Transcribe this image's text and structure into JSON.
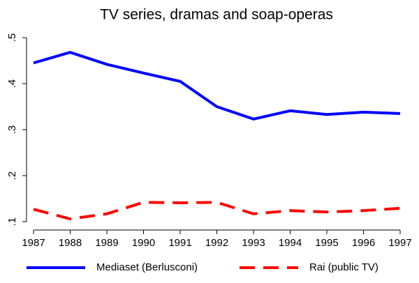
{
  "chart_data": {
    "type": "line",
    "title": "TV series, dramas and soap-operas",
    "x": [
      1987,
      1988,
      1989,
      1990,
      1991,
      1992,
      1993,
      1994,
      1995,
      1996,
      1997
    ],
    "series": [
      {
        "name": "Mediaset (Berlusconi)",
        "color": "#0000ff",
        "line_style": "solid",
        "values": [
          0.445,
          0.468,
          0.442,
          0.423,
          0.405,
          0.35,
          0.323,
          0.341,
          0.333,
          0.338,
          0.335
        ]
      },
      {
        "name": "Rai (public TV)",
        "color": "#ff0000",
        "line_style": "dashed",
        "values": [
          0.127,
          0.106,
          0.117,
          0.142,
          0.141,
          0.142,
          0.117,
          0.124,
          0.121,
          0.124,
          0.129
        ]
      }
    ],
    "xlim": [
      1987,
      1997
    ],
    "xticks": [
      1987,
      1988,
      1989,
      1990,
      1991,
      1992,
      1993,
      1994,
      1995,
      1996,
      1997
    ],
    "ylim": [
      0.1,
      0.5
    ],
    "yticks": [
      {
        "value": 0.1,
        "label": ".1"
      },
      {
        "value": 0.2,
        "label": ".2"
      },
      {
        "value": 0.3,
        "label": ".3"
      },
      {
        "value": 0.4,
        "label": ".4"
      },
      {
        "value": 0.5,
        "label": ".5"
      }
    ],
    "grid": false,
    "legend": "bottom"
  }
}
